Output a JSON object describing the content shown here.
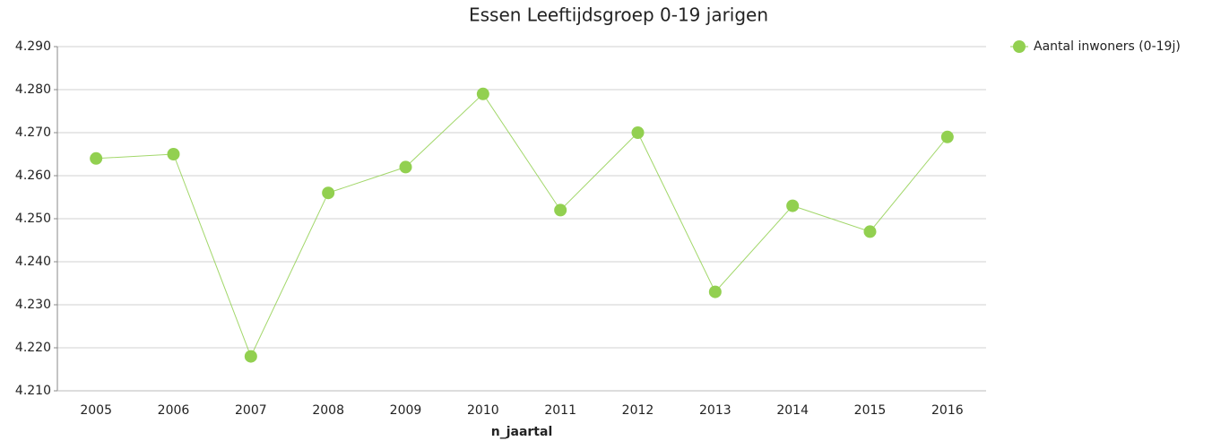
{
  "chart_data": {
    "type": "line",
    "title": "Essen  Leeftijdsgroep 0-19 jarigen",
    "x_label": "n_jaartal",
    "categories": [
      "2005",
      "2006",
      "2007",
      "2008",
      "2009",
      "2010",
      "2011",
      "2012",
      "2013",
      "2014",
      "2015",
      "2016"
    ],
    "series": [
      {
        "name": "Aantal inwoners (0-19j)",
        "color": "#92d050",
        "values": [
          4264,
          4265,
          4218,
          4256,
          4262,
          4279,
          4252,
          4270,
          4233,
          4253,
          4247,
          4269
        ]
      }
    ],
    "ylim": [
      4210,
      4290
    ],
    "yticks": [
      {
        "value": 4210,
        "label": "4.210"
      },
      {
        "value": 4220,
        "label": "4.220"
      },
      {
        "value": 4230,
        "label": "4.230"
      },
      {
        "value": 4240,
        "label": "4.240"
      },
      {
        "value": 4250,
        "label": "4.250"
      },
      {
        "value": 4260,
        "label": "4.260"
      },
      {
        "value": 4270,
        "label": "4.270"
      },
      {
        "value": 4280,
        "label": "4.280"
      },
      {
        "value": 4290,
        "label": "4.290"
      }
    ],
    "grid": true,
    "legend": "top-right"
  }
}
